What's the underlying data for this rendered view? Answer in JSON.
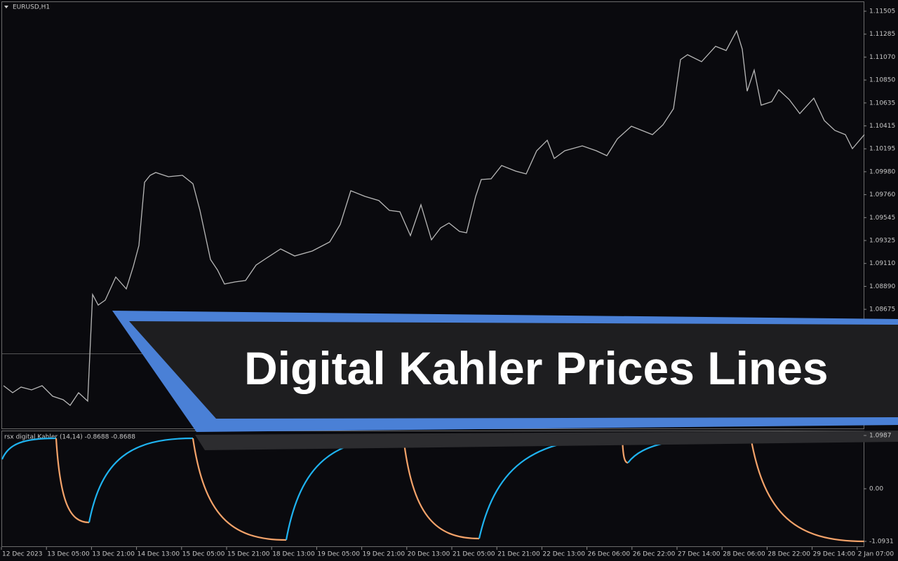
{
  "symbol": "EURUSD,H1",
  "price_axis": [
    "1.11505",
    "1.11285",
    "1.11070",
    "1.10850",
    "1.10635",
    "1.10415",
    "1.10195",
    "1.09980",
    "1.09760",
    "1.09545",
    "1.09325",
    "1.09110",
    "1.08890",
    "1.08675"
  ],
  "indicator": {
    "label": "rsx digital Kahler (14,14) -0.8688 -0.8688",
    "axis": [
      "1.0987",
      "0.00",
      "-1.0931"
    ]
  },
  "time_axis": [
    "12 Dec 2023",
    "13 Dec 05:00",
    "13 Dec 21:00",
    "14 Dec 13:00",
    "15 Dec 05:00",
    "15 Dec 21:00",
    "18 Dec 13:00",
    "19 Dec 05:00",
    "19 Dec 21:00",
    "20 Dec 13:00",
    "21 Dec 05:00",
    "21 Dec 21:00",
    "22 Dec 13:00",
    "26 Dec 06:00",
    "26 Dec 22:00",
    "27 Dec 14:00",
    "28 Dec 06:00",
    "28 Dec 22:00",
    "29 Dec 14:00",
    "2 Jan 07:00"
  ],
  "banner": {
    "title": "Digital Kahler Prices Lines"
  }
}
